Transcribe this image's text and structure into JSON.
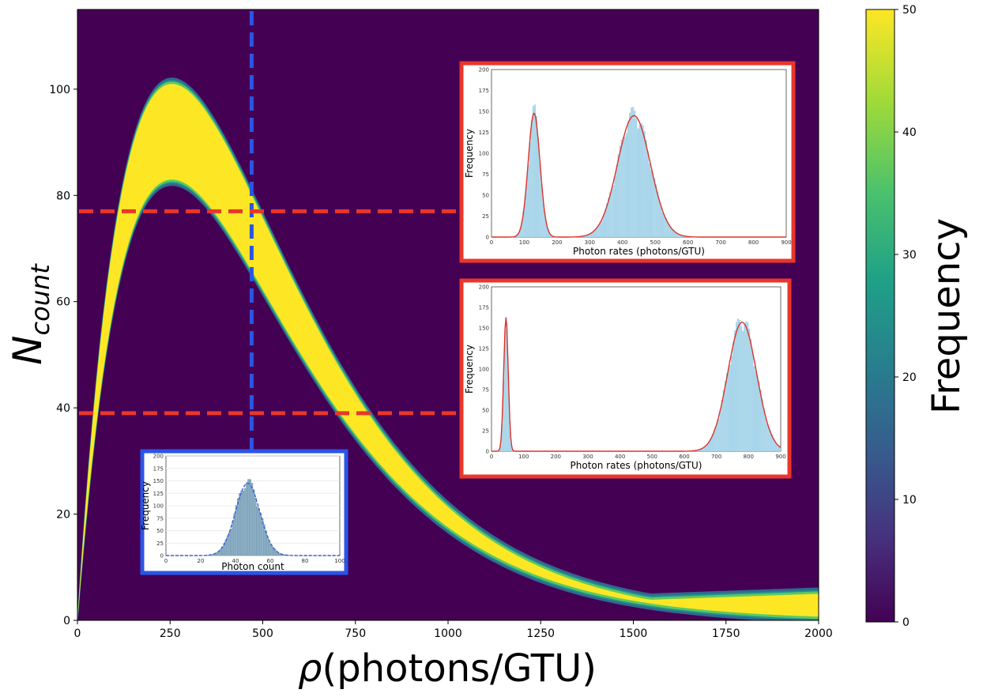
{
  "chart_data": {
    "type": "heatmap",
    "title": "",
    "xlabel_symbol": "ρ",
    "xlabel_unit": "(photons/GTU)",
    "ylabel_base": "N",
    "ylabel_sub": "count",
    "xlim": [
      0,
      2000
    ],
    "ylim": [
      0,
      115
    ],
    "x_ticks": [
      0,
      250,
      500,
      750,
      1000,
      1250,
      1500,
      1750,
      2000
    ],
    "y_ticks": [
      0,
      20,
      40,
      60,
      80,
      100
    ],
    "bands": [
      {
        "name": "upper band",
        "peak_rho": 255,
        "peak_N": 101,
        "tail_N_at_2000": 5
      },
      {
        "name": "lower band",
        "peak_rho": 255,
        "peak_N": 83,
        "tail_N_at_2000": 0
      }
    ],
    "colorbar": {
      "label": "Frequency",
      "range": [
        0,
        50
      ],
      "ticks": [
        0,
        10,
        20,
        30,
        40,
        50
      ],
      "colormap": [
        "#440154",
        "#46327e",
        "#365c8d",
        "#277f8e",
        "#1fa187",
        "#4ac16d",
        "#a0da39",
        "#fde725"
      ]
    },
    "guide_lines": [
      {
        "orientation": "vertical",
        "value": 470,
        "color": "#2b55e6",
        "style": "dashed"
      },
      {
        "orientation": "horizontal",
        "value": 77,
        "color": "#e8372a",
        "style": "dashed"
      },
      {
        "orientation": "horizontal",
        "value": 39,
        "color": "#e8372a",
        "style": "dashed"
      }
    ],
    "insets": [
      {
        "name": "inset-upper-red",
        "border_color": "#e8372a",
        "xlabel": "Photon rates (photons/GTU)",
        "ylabel": "Frequency",
        "xlim": [
          0,
          900
        ],
        "ylim": [
          0,
          200
        ],
        "x_ticks": [
          0,
          100,
          200,
          300,
          400,
          500,
          600,
          700,
          800,
          900
        ],
        "y_ticks": [
          0,
          25,
          50,
          75,
          100,
          125,
          150,
          175,
          200
        ],
        "peaks": [
          {
            "mean": 130,
            "sigma": 18,
            "height": 148
          },
          {
            "mean": 435,
            "sigma": 50,
            "height": 145
          }
        ]
      },
      {
        "name": "inset-lower-red",
        "border_color": "#e8372a",
        "xlabel": "Photon rates (photons/GTU)",
        "ylabel": "Frequency",
        "xlim": [
          0,
          900
        ],
        "ylim": [
          0,
          200
        ],
        "x_ticks": [
          0,
          100,
          200,
          300,
          400,
          500,
          600,
          700,
          800,
          900
        ],
        "y_ticks": [
          0,
          25,
          50,
          75,
          100,
          125,
          150,
          175,
          200
        ],
        "peaks": [
          {
            "mean": 45,
            "sigma": 7,
            "height": 163
          },
          {
            "mean": 780,
            "sigma": 45,
            "height": 157
          }
        ]
      },
      {
        "name": "inset-blue",
        "border_color": "#2b55e6",
        "xlabel": "Photon count",
        "ylabel": "Frequency",
        "xlim": [
          0,
          100
        ],
        "ylim": [
          0,
          200
        ],
        "x_ticks": [
          0,
          20,
          40,
          60,
          80,
          100
        ],
        "y_ticks": [
          0,
          25,
          50,
          75,
          100,
          125,
          150,
          175,
          200
        ],
        "peaks": [
          {
            "mean": 47,
            "sigma": 7,
            "height": 145
          }
        ]
      }
    ]
  }
}
